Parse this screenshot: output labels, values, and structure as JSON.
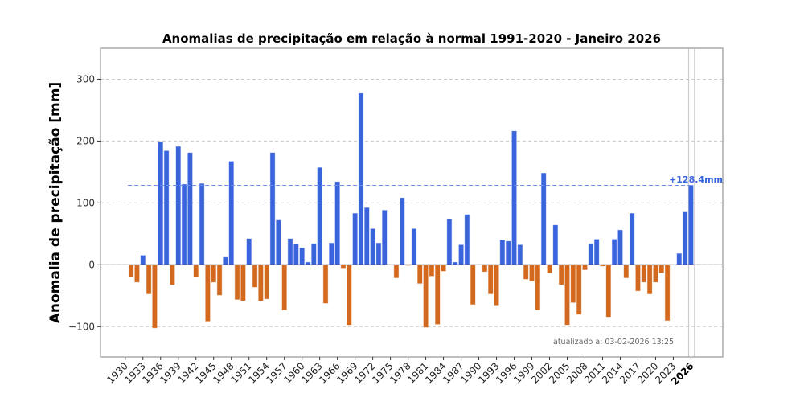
{
  "chart_data": {
    "type": "bar",
    "title": "Anomalias de precipitação em relação à normal 1991-2020 - Janeiro 2026",
    "xlabel": "",
    "ylabel": "Anomalia de precipitação [mm]",
    "xlim": [
      1925.8,
      2031.4
    ],
    "ylim": [
      -149,
      350
    ],
    "yticks": [
      -100,
      0,
      100,
      200,
      300
    ],
    "ytick_labels": [
      "−100",
      "0",
      "100",
      "200",
      "300"
    ],
    "xticks": [
      1930,
      1933,
      1936,
      1939,
      1942,
      1945,
      1948,
      1951,
      1954,
      1957,
      1960,
      1963,
      1966,
      1969,
      1972,
      1975,
      1978,
      1981,
      1984,
      1987,
      1990,
      1993,
      1996,
      1999,
      2002,
      2005,
      2008,
      2011,
      2014,
      2017,
      2020,
      2023,
      2026
    ],
    "xtick_labels": [
      "1930",
      "1933",
      "1936",
      "1939",
      "1942",
      "1945",
      "1948",
      "1951",
      "1954",
      "1957",
      "1960",
      "1963",
      "1966",
      "1969",
      "1972",
      "1975",
      "1978",
      "1981",
      "1984",
      "1987",
      "1990",
      "1993",
      "1996",
      "1999",
      "2002",
      "2005",
      "2008",
      "2011",
      "2014",
      "2017",
      "2020",
      "2023",
      "2026"
    ],
    "highlight_tick": "2026",
    "grid": "y, dashed",
    "colors": {
      "positive": "#3a64dc",
      "negative": "#d2691e",
      "grid": "#c8c8c8",
      "reference_line": "#6f8fe6",
      "annotation": "#3a64dc",
      "highlight_band": "#cccccc",
      "spine": "#aaaaaa"
    },
    "x": [
      1931,
      1932,
      1933,
      1934,
      1935,
      1936,
      1937,
      1938,
      1939,
      1940,
      1941,
      1942,
      1943,
      1944,
      1945,
      1946,
      1947,
      1948,
      1949,
      1950,
      1951,
      1952,
      1953,
      1954,
      1955,
      1956,
      1957,
      1958,
      1959,
      1960,
      1961,
      1962,
      1963,
      1964,
      1965,
      1966,
      1967,
      1968,
      1969,
      1970,
      1971,
      1972,
      1973,
      1974,
      1976,
      1977,
      1978,
      1979,
      1980,
      1981,
      1982,
      1983,
      1984,
      1985,
      1986,
      1987,
      1988,
      1989,
      1991,
      1992,
      1993,
      1994,
      1995,
      1996,
      1997,
      1998,
      1999,
      2000,
      2001,
      2002,
      2003,
      2004,
      2005,
      2006,
      2007,
      2008,
      2009,
      2010,
      2011,
      2012,
      2013,
      2014,
      2015,
      2016,
      2017,
      2018,
      2019,
      2020,
      2021,
      2022,
      2024,
      2025,
      2026
    ],
    "values": [
      -19,
      -28,
      15,
      -47,
      -102,
      199,
      184,
      -32,
      191,
      130,
      181,
      -19,
      131,
      -91,
      -28,
      -49,
      12,
      167,
      -56,
      -58,
      42,
      -36,
      -58,
      -55,
      181,
      72,
      -73,
      42,
      33,
      27,
      4,
      34,
      157,
      -62,
      35,
      134,
      -5,
      -97,
      83,
      277,
      92,
      58,
      35,
      88,
      -21,
      108,
      -1,
      58,
      -30,
      -101,
      -18,
      -96,
      -10,
      74,
      4,
      32,
      81,
      -64,
      -11,
      -47,
      -65,
      40,
      38,
      216,
      32,
      -23,
      -26,
      -73,
      148,
      -13,
      64,
      -32,
      -97,
      -61,
      -80,
      -8,
      34,
      41,
      -2,
      -84,
      41,
      56,
      -21,
      83,
      -42,
      -28,
      -47,
      -28,
      -13,
      -90,
      18,
      85,
      128.4
    ],
    "reference_value": 128.4,
    "annotation": "+128.4mm",
    "footnote": "atualizado a: 03-02-2026 13:25"
  }
}
